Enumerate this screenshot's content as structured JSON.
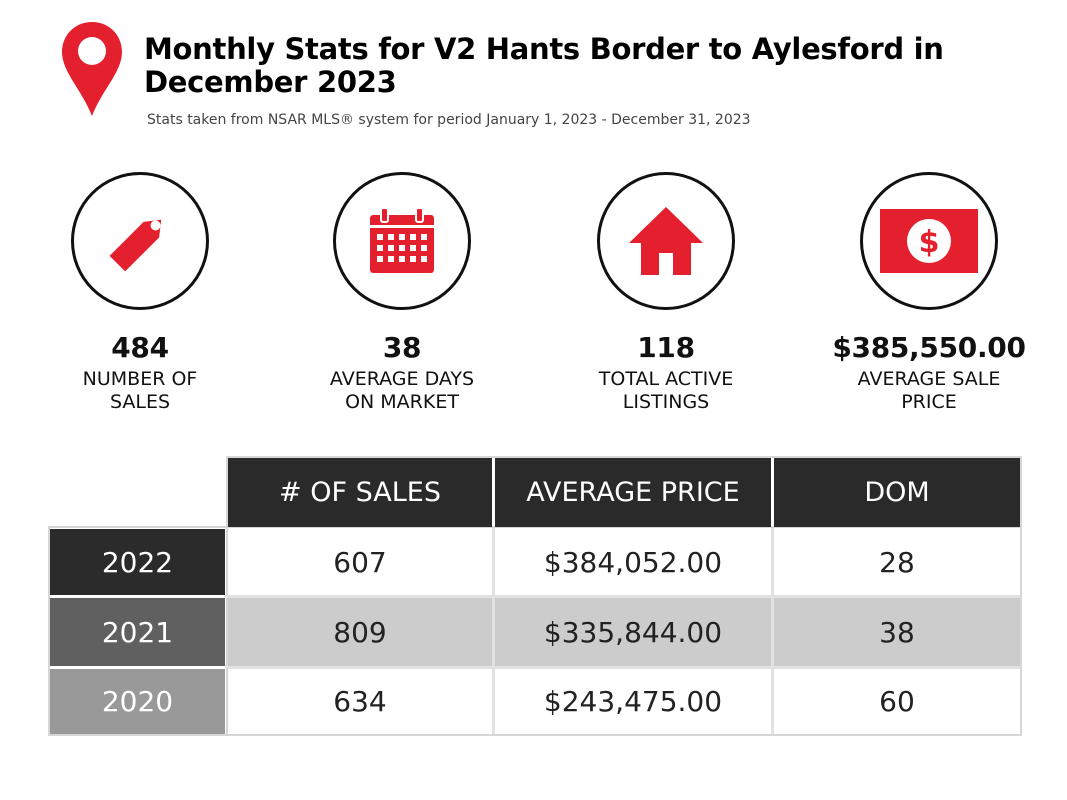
{
  "header": {
    "title_line1": "Monthly Stats for V2 Hants Border to Aylesford in",
    "title_line2": "December 2023",
    "subtitle": "Stats taken from NSAR MLS® system for period January 1, 2023 - December 31, 2023",
    "icon": "map-pin-icon"
  },
  "colors": {
    "accent": "#e5202e",
    "dark": "#2a2a2a",
    "mid_grey": "#606060",
    "light_grey": "#999999",
    "row_grey": "#cccccc"
  },
  "stats": [
    {
      "icon": "price-tag-icon",
      "value": "484",
      "label_line1": "NUMBER OF",
      "label_line2": "SALES"
    },
    {
      "icon": "calendar-icon",
      "value": "38",
      "label_line1": "AVERAGE DAYS",
      "label_line2": "ON MARKET"
    },
    {
      "icon": "house-icon",
      "value": "118",
      "label_line1": "TOTAL ACTIVE",
      "label_line2": "LISTINGS"
    },
    {
      "icon": "dollar-bill-icon",
      "value": "$385,550.00",
      "label_line1": "AVERAGE SALE",
      "label_line2": "PRICE"
    }
  ],
  "table": {
    "headers": [
      "# OF SALES",
      "AVERAGE PRICE",
      "DOM"
    ],
    "rows": [
      {
        "year": "2022",
        "sales": "607",
        "avg_price": "$384,052.00",
        "dom": "28"
      },
      {
        "year": "2021",
        "sales": "809",
        "avg_price": "$335,844.00",
        "dom": "38"
      },
      {
        "year": "2020",
        "sales": "634",
        "avg_price": "$243,475.00",
        "dom": "60"
      }
    ]
  }
}
